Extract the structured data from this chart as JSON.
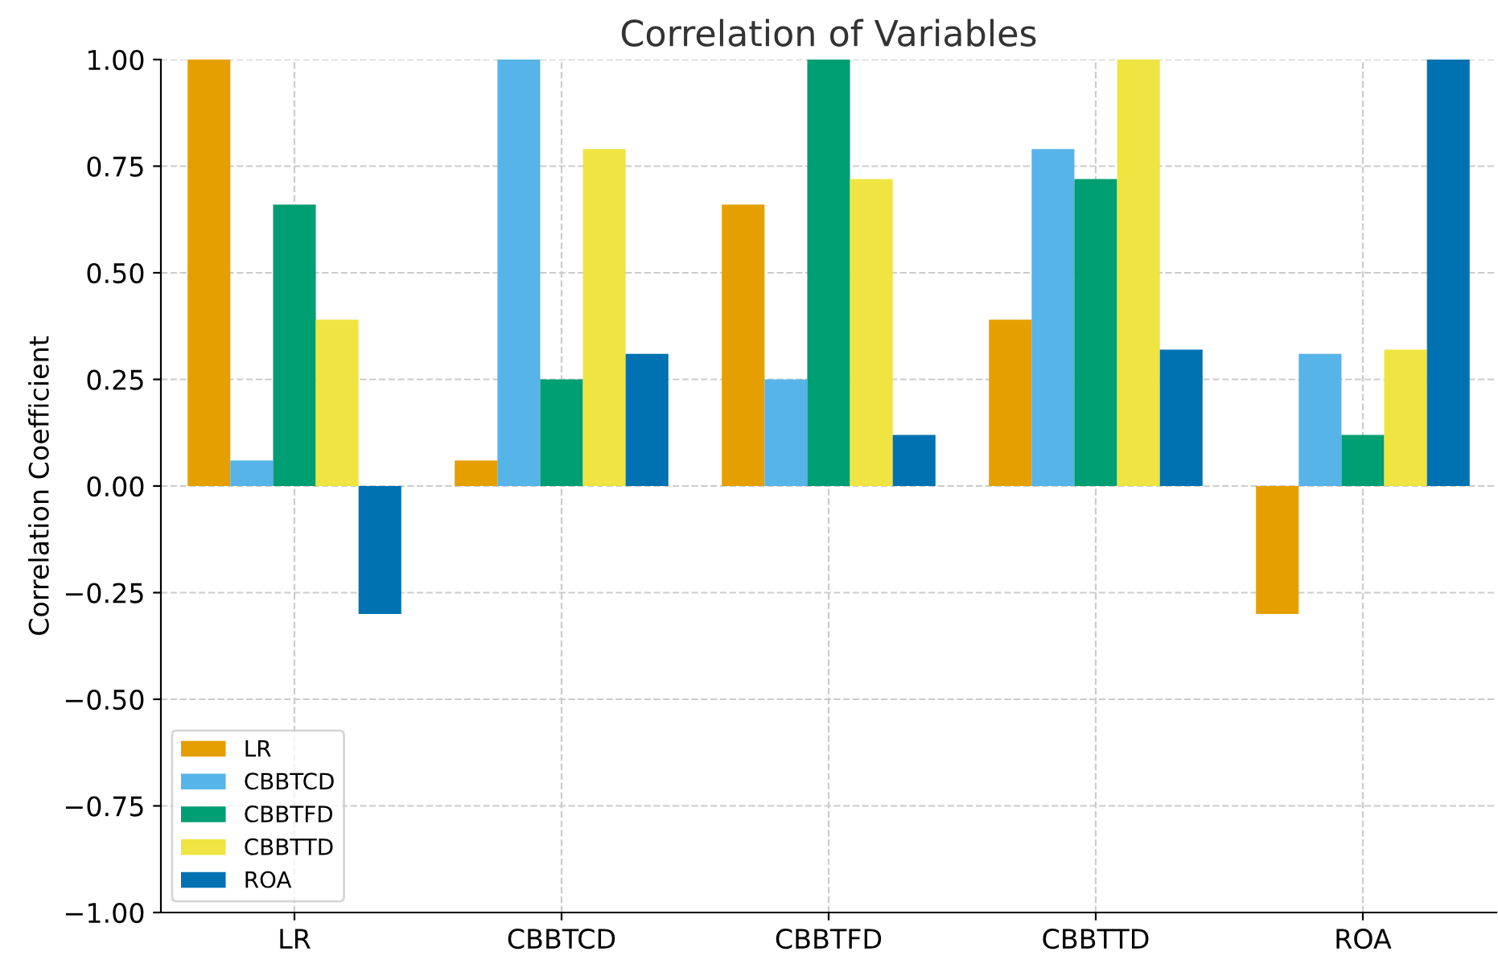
{
  "chart_data": {
    "type": "bar",
    "title": "Correlation of Variables",
    "ylabel": "Correlation Coefficient",
    "categories": [
      "LR",
      "CBBTCD",
      "CBBTFD",
      "CBBTTD",
      "ROA"
    ],
    "series": [
      {
        "name": "LR",
        "color": "#e69f00",
        "values": [
          1.0,
          0.06,
          0.66,
          0.39,
          -0.3
        ]
      },
      {
        "name": "CBBTCD",
        "color": "#56b4e9",
        "values": [
          0.06,
          1.0,
          0.25,
          0.79,
          0.31
        ]
      },
      {
        "name": "CBBTFD",
        "color": "#009e73",
        "values": [
          0.66,
          0.25,
          1.0,
          0.72,
          0.12
        ]
      },
      {
        "name": "CBBTTD",
        "color": "#f0e442",
        "values": [
          0.39,
          0.79,
          0.72,
          1.0,
          0.32
        ]
      },
      {
        "name": "ROA",
        "color": "#0072b2",
        "values": [
          -0.3,
          0.31,
          0.12,
          0.32,
          1.0
        ]
      }
    ],
    "ylim": [
      -1.0,
      1.0
    ],
    "yticks": [
      {
        "value": -1.0,
        "label": "−1.00"
      },
      {
        "value": -0.75,
        "label": "−0.75"
      },
      {
        "value": -0.5,
        "label": "−0.50"
      },
      {
        "value": -0.25,
        "label": "−0.25"
      },
      {
        "value": 0.0,
        "label": "0.00"
      },
      {
        "value": 0.25,
        "label": "0.25"
      },
      {
        "value": 0.5,
        "label": "0.50"
      },
      {
        "value": 0.75,
        "label": "0.75"
      },
      {
        "value": 1.0,
        "label": "1.00"
      }
    ],
    "grid": true,
    "legend": "bottom left"
  }
}
